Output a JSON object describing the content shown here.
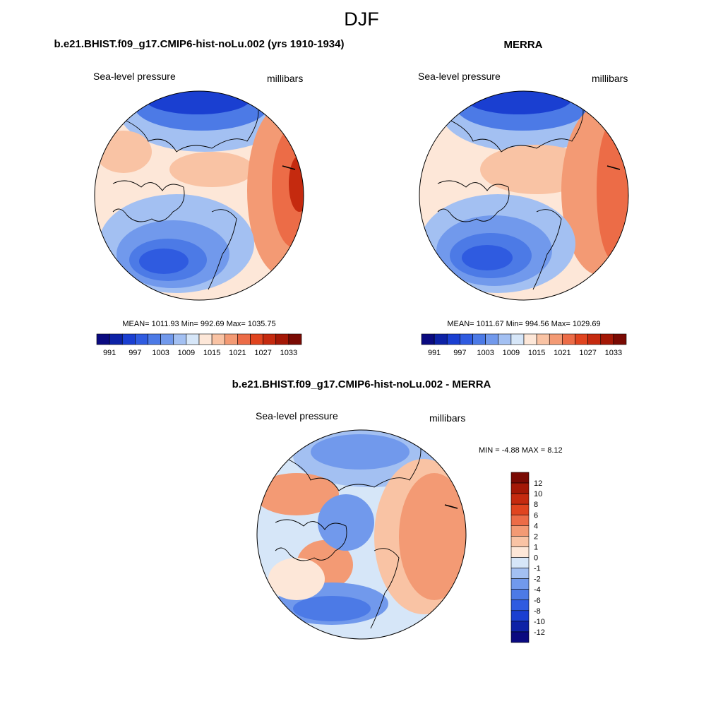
{
  "main_title": "DJF",
  "panels": [
    {
      "title": "b.e21.BHIST.f09_g17.CMIP6-hist-noLu.002 (yrs 1910-1934)",
      "variable": "Sea-level pressure",
      "units": "millibars",
      "stats_text": "MEAN= 1011.93  Min= 992.69  Max= 1035.75"
    },
    {
      "title": "MERRA",
      "variable": "Sea-level pressure",
      "units": "millibars",
      "stats_text": "MEAN= 1011.67  Min= 994.56  Max= 1029.69"
    },
    {
      "title": "b.e21.BHIST.f09_g17.CMIP6-hist-noLu.002 - MERRA",
      "variable": "Sea-level pressure",
      "units": "millibars",
      "stats_text": "MIN =  -4.88 MAX =   8.12"
    }
  ],
  "colorbar_slp": {
    "colors": [
      "#0a0a80",
      "#0d22a6",
      "#1a3fd1",
      "#2f5be0",
      "#4c7ae6",
      "#7199ec",
      "#a3c0f2",
      "#d6e6f8",
      "#fde7d8",
      "#f9c3a4",
      "#f39a74",
      "#ec6c47",
      "#e0441f",
      "#c52a0f",
      "#a41806",
      "#7a0a03"
    ],
    "tick_labels": [
      "991",
      "997",
      "1003",
      "1009",
      "1015",
      "1021",
      "1027",
      "1033"
    ]
  },
  "colorbar_diff": {
    "colors": [
      "#7a0a03",
      "#a41806",
      "#c52a0f",
      "#e0441f",
      "#ec6c47",
      "#f39a74",
      "#f9c3a4",
      "#fde7d8",
      "#d6e6f8",
      "#a3c0f2",
      "#7199ec",
      "#4c7ae6",
      "#2f5be0",
      "#1a3fd1",
      "#0d22a6",
      "#0a0a80"
    ],
    "tick_labels": [
      "12",
      "10",
      "8",
      "6",
      "4",
      "2",
      "1",
      "0",
      "-1",
      "-2",
      "-4",
      "-6",
      "-8",
      "-10",
      "-12"
    ]
  }
}
